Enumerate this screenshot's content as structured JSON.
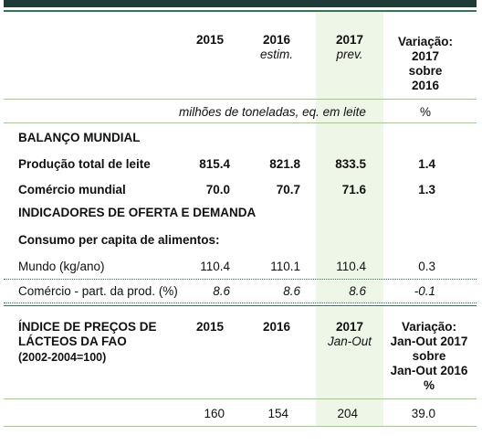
{
  "section1": {
    "headers": {
      "y2015": "2015",
      "y2016": "2016",
      "y2016_note": "estim.",
      "y2017": "2017",
      "y2017_note": "prev.",
      "variation": [
        "Variação:",
        "2017",
        "sobre",
        "2016"
      ]
    },
    "units": "milhões de toneladas, eq. em leite",
    "units_pct": "%",
    "balance_title": "BALANÇO MUNDIAL",
    "rows": [
      {
        "label": "Produção total de leite",
        "v2015": "815.4",
        "v2016": "821.8",
        "v2017": "833.5",
        "var": "1.4"
      },
      {
        "label": "Comércio mundial",
        "v2015": "70.0",
        "v2016": "70.7",
        "v2017": "71.6",
        "var": "1.3"
      }
    ],
    "indicators_title": "INDICADORES DE OFERTA E DEMANDA",
    "consumption_title": "Consumo per capita de alimentos:",
    "world_row": {
      "label": "Mundo (kg/ano)",
      "v2015": "110.4",
      "v2016": "110.1",
      "v2017": "110.4",
      "var": "0.3"
    },
    "trade_row": {
      "label": "Comércio - part. da prod. (%)",
      "v2015": "8.6",
      "v2016": "8.6",
      "v2017": "8.6",
      "var": "-0.1"
    }
  },
  "section2": {
    "title": [
      "ÍNDICE DE PREÇOS DE",
      "LÁCTEOS DA FAO",
      "(2002-2004=100)"
    ],
    "y2015": "2015",
    "y2016": "2016",
    "y2017": "2017",
    "y2017_note": "Jan-Out",
    "variation": [
      "Variação:",
      "Jan-Out 2017",
      "sobre",
      "Jan-Out 2016",
      "%"
    ],
    "values": {
      "v2015": "160",
      "v2016": "154",
      "v2017": "204",
      "var": "39.0"
    }
  }
}
